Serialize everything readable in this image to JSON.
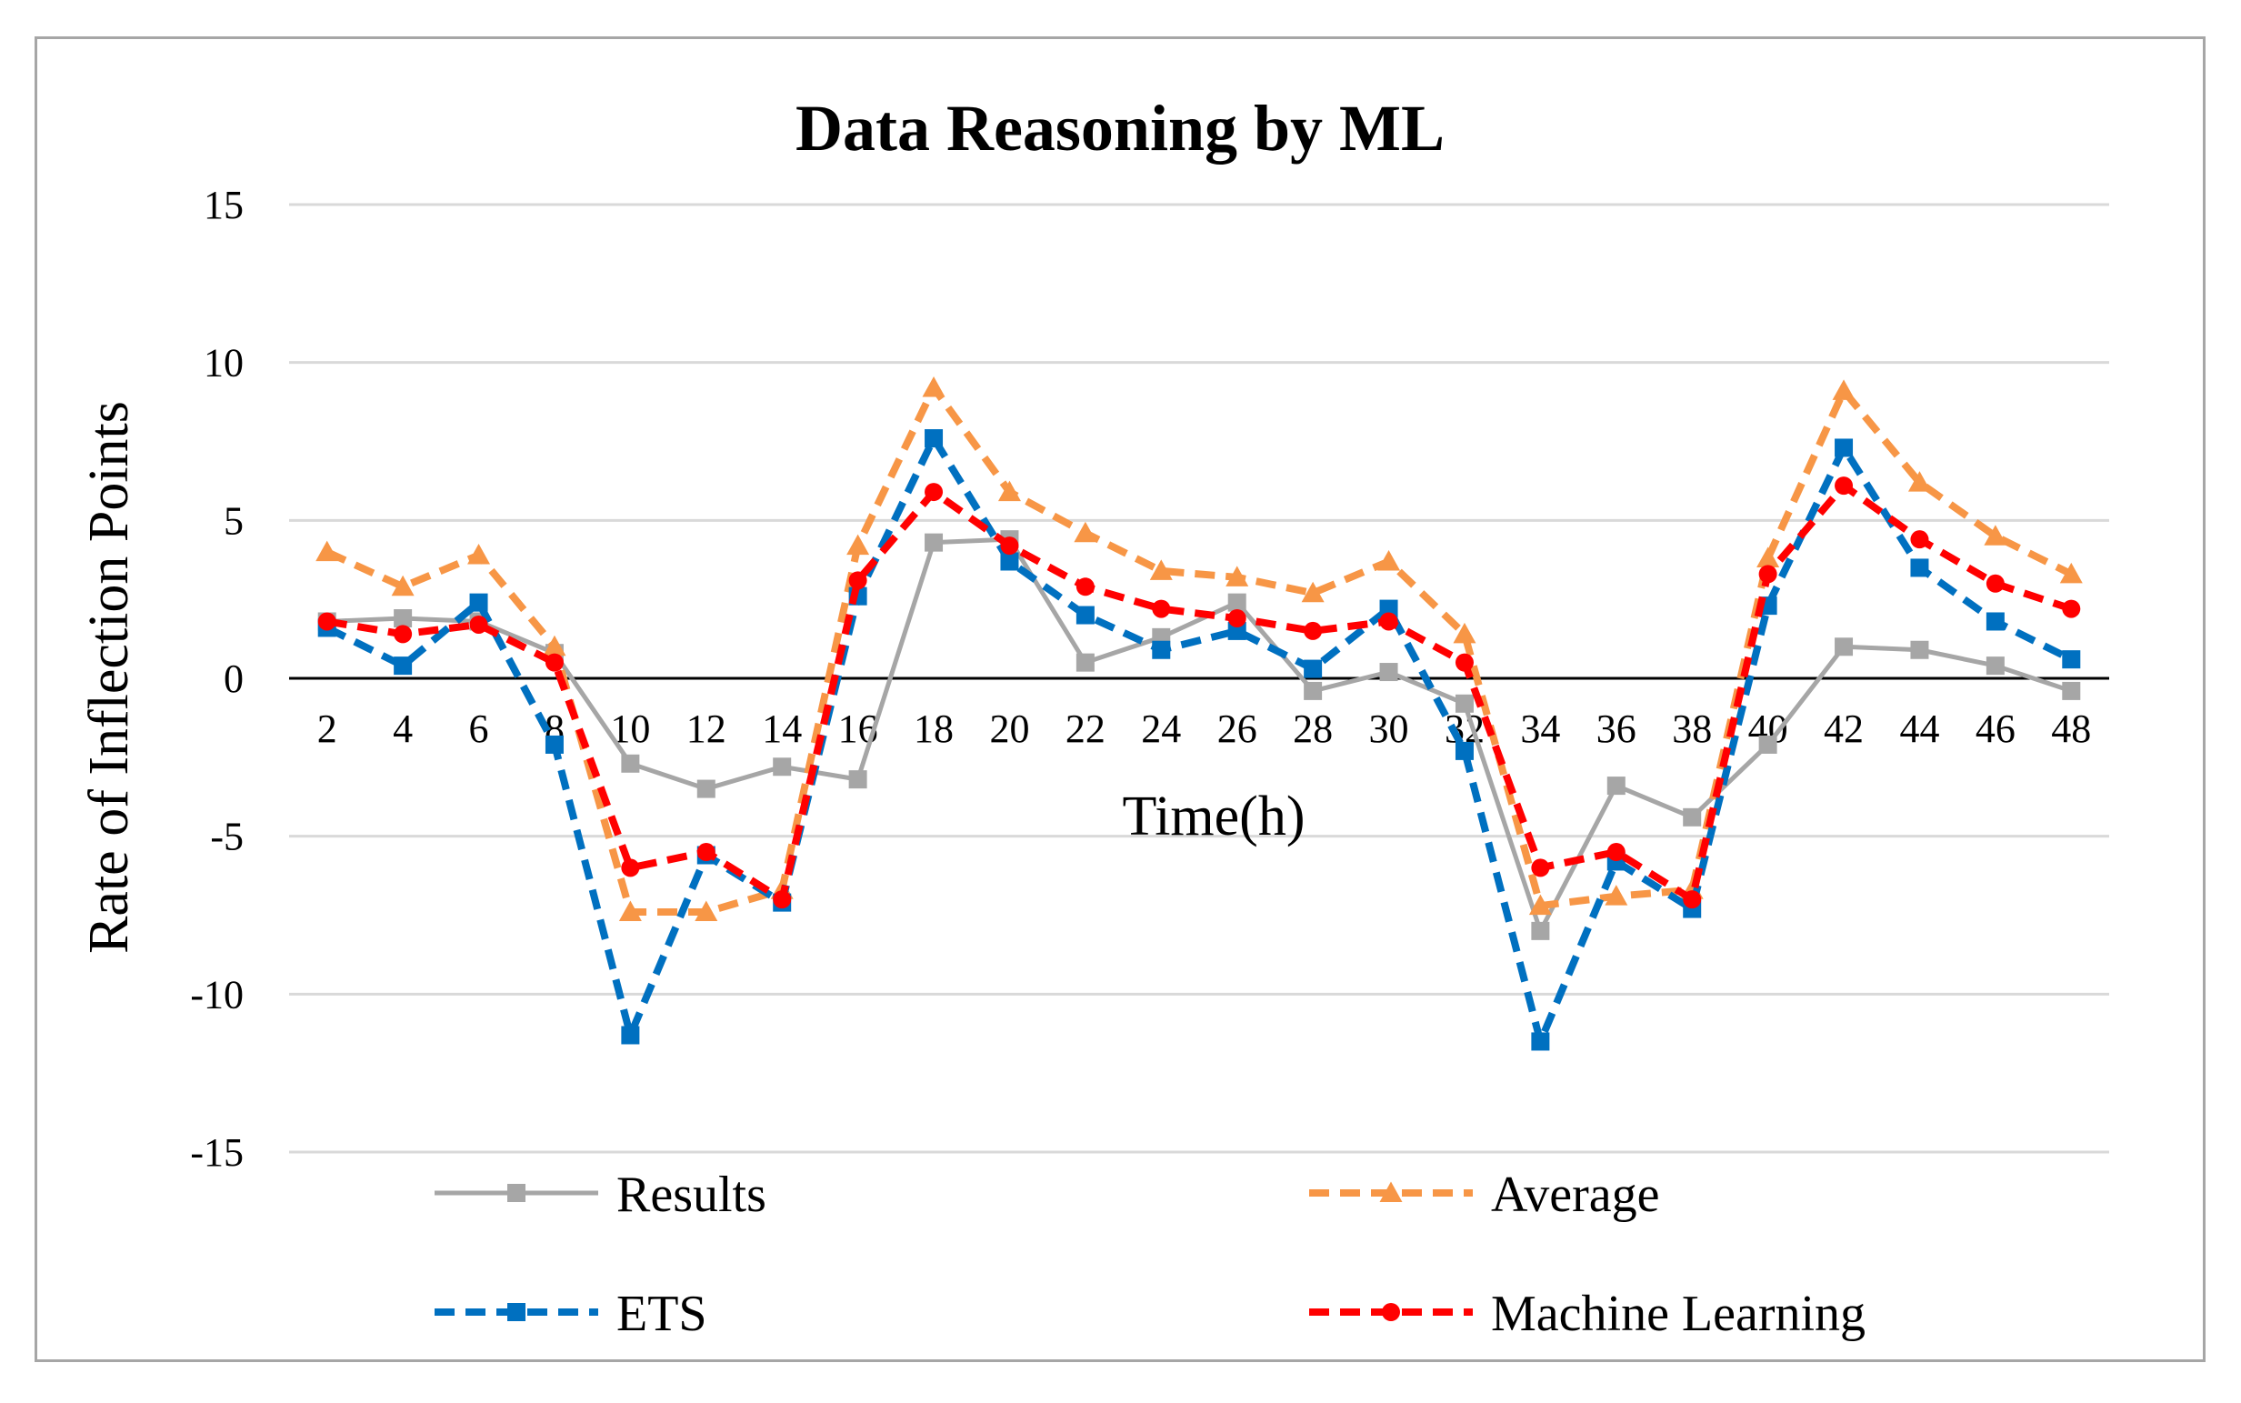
{
  "chart_data": {
    "type": "line",
    "title": "Data Reasoning by ML",
    "xlabel": "Time(h)",
    "ylabel": "Rate of Inflection Points",
    "ylim": [
      -15,
      15
    ],
    "yticks": [
      15,
      10,
      5,
      0,
      -5,
      -10,
      -15
    ],
    "grid": true,
    "legend_position": "bottom",
    "categories": [
      "2",
      "4",
      "6",
      "8",
      "10",
      "12",
      "14",
      "16",
      "18",
      "20",
      "22",
      "24",
      "26",
      "28",
      "30",
      "32",
      "34",
      "36",
      "38",
      "40",
      "42",
      "44",
      "46",
      "48"
    ],
    "series": [
      {
        "name": "Results",
        "color": "#a6a6a6",
        "style": "solid",
        "marker": "square",
        "values": [
          1.8,
          1.9,
          1.8,
          0.8,
          -2.7,
          -3.5,
          -2.8,
          -3.2,
          4.3,
          4.4,
          0.5,
          1.3,
          2.4,
          -0.4,
          0.2,
          -0.8,
          -8.0,
          -3.4,
          -4.4,
          -2.1,
          1.0,
          0.9,
          0.4,
          -0.4
        ]
      },
      {
        "name": "Average",
        "color": "#f79646",
        "style": "dashed",
        "marker": "triangle",
        "values": [
          4.0,
          2.9,
          3.9,
          1.0,
          -7.4,
          -7.4,
          -6.7,
          4.2,
          9.2,
          5.9,
          4.6,
          3.4,
          3.2,
          2.7,
          3.7,
          1.4,
          -7.2,
          -6.9,
          -6.7,
          3.8,
          9.1,
          6.2,
          4.5,
          3.3
        ]
      },
      {
        "name": "ETS",
        "color": "#0070c0",
        "style": "dashed",
        "marker": "square",
        "values": [
          1.6,
          0.4,
          2.4,
          -2.1,
          -11.3,
          -5.6,
          -7.1,
          2.6,
          7.6,
          3.7,
          2.0,
          0.9,
          1.5,
          0.3,
          2.2,
          -2.3,
          -11.5,
          -5.8,
          -7.3,
          2.3,
          7.3,
          3.5,
          1.8,
          0.6
        ]
      },
      {
        "name": "Machine Learning",
        "color": "#ff0000",
        "style": "dashed",
        "marker": "circle",
        "values": [
          1.8,
          1.4,
          1.7,
          0.5,
          -6.0,
          -5.5,
          -7.0,
          3.1,
          5.9,
          4.2,
          2.9,
          2.2,
          1.9,
          1.5,
          1.8,
          0.5,
          -6.0,
          -5.5,
          -7.0,
          3.3,
          6.1,
          4.4,
          3.0,
          2.2
        ]
      }
    ]
  }
}
